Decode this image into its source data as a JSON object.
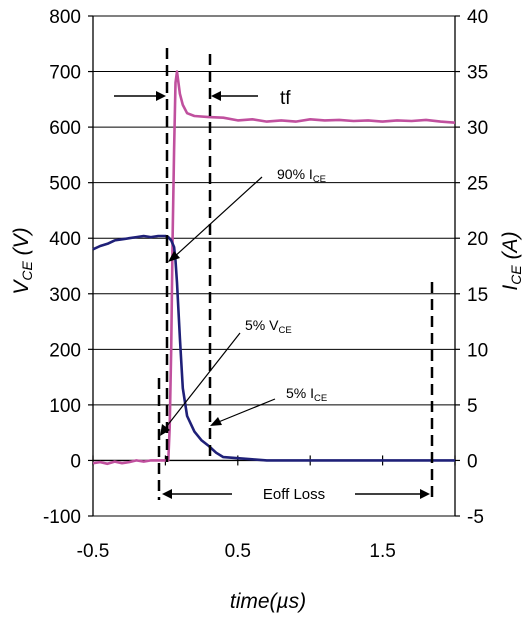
{
  "chart_data": {
    "type": "line",
    "xlabel": "time(µs)",
    "ylabel_left": {
      "main": "V",
      "sub": "CE",
      "rest": " (V)"
    },
    "ylabel_right": {
      "main": "I",
      "sub": "CE",
      "rest": " (A)"
    },
    "xlim": [
      -0.5,
      2.0
    ],
    "ylim_left": [
      -100,
      800
    ],
    "ylim_right": [
      -5,
      40
    ],
    "x_ticks": [
      -0.5,
      0.5,
      1.5
    ],
    "x_tick_labels": [
      "-0.5",
      "0.5",
      "1.5"
    ],
    "y_left_ticks": [
      -100,
      0,
      100,
      200,
      300,
      400,
      500,
      600,
      700,
      800
    ],
    "y_left_tick_labels": [
      "-100",
      "0",
      "100",
      "200",
      "300",
      "400",
      "500",
      "600",
      "700",
      "800"
    ],
    "y_right_ticks": [
      -5,
      0,
      5,
      10,
      15,
      20,
      25,
      30,
      35,
      40
    ],
    "y_right_tick_labels": [
      "-5",
      "0",
      "5",
      "10",
      "15",
      "20",
      "25",
      "30",
      "35",
      "40"
    ],
    "grid": "horizontal",
    "series": [
      {
        "axis": "left",
        "color": "#c0509e",
        "x": [
          -0.5,
          -0.45,
          -0.4,
          -0.35,
          -0.3,
          -0.25,
          -0.2,
          -0.15,
          -0.1,
          -0.05,
          0.0,
          0.02,
          0.03,
          0.04,
          0.05,
          0.06,
          0.07,
          0.08,
          0.1,
          0.12,
          0.15,
          0.2,
          0.3,
          0.4,
          0.5,
          0.6,
          0.7,
          0.8,
          0.9,
          1.0,
          1.1,
          1.2,
          1.3,
          1.4,
          1.5,
          1.6,
          1.7,
          1.8,
          1.9,
          2.0
        ],
        "values": [
          -5,
          -3,
          -6,
          -2,
          -5,
          -3,
          0,
          -2,
          0,
          0,
          0,
          0,
          60,
          200,
          400,
          560,
          680,
          700,
          660,
          640,
          625,
          620,
          618,
          617,
          612,
          614,
          610,
          612,
          610,
          614,
          612,
          613,
          611,
          612,
          610,
          612,
          611,
          613,
          610,
          608
        ]
      },
      {
        "axis": "right",
        "color": "#1f2078",
        "x": [
          -0.5,
          -0.45,
          -0.4,
          -0.35,
          -0.3,
          -0.25,
          -0.2,
          -0.15,
          -0.1,
          -0.05,
          0.0,
          0.02,
          0.04,
          0.06,
          0.07,
          0.08,
          0.1,
          0.12,
          0.15,
          0.2,
          0.25,
          0.3,
          0.35,
          0.4,
          0.5,
          0.6,
          0.7,
          0.8,
          1.0,
          1.2,
          1.4,
          1.6,
          1.8,
          2.0
        ],
        "values": [
          19.0,
          19.3,
          19.5,
          19.8,
          19.9,
          20.0,
          20.1,
          20.2,
          20.1,
          20.2,
          20.2,
          20.1,
          19.8,
          19.2,
          18.0,
          16.0,
          11.0,
          6.5,
          4.0,
          2.6,
          1.8,
          1.3,
          0.7,
          0.3,
          0.2,
          0.1,
          0.0,
          0.0,
          0.0,
          0.0,
          0.0,
          0.0,
          0.0,
          0.0
        ]
      }
    ],
    "annotations": {
      "ice90": {
        "main": "90% I",
        "sub": "CE"
      },
      "vce5": {
        "main": "5% V",
        "sub": "CE"
      },
      "ice5": {
        "main": "5% I",
        "sub": "CE"
      },
      "tf": "tf",
      "eoff": "Eoff Loss"
    }
  }
}
